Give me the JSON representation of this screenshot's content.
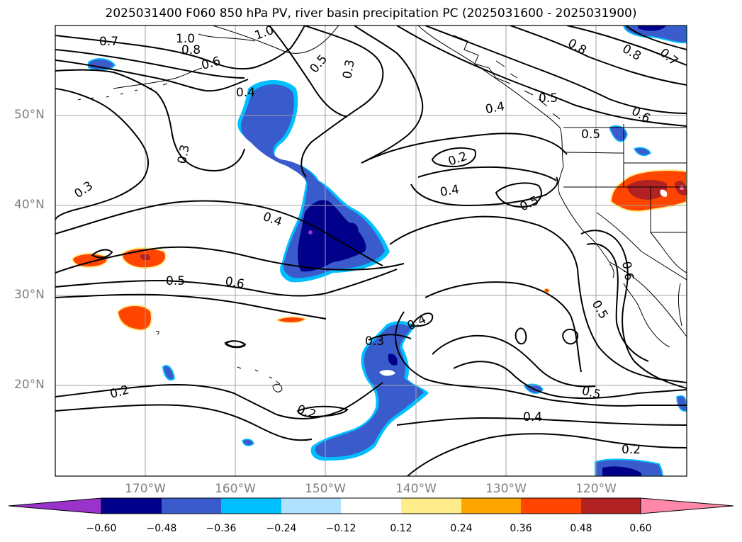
{
  "title": "2025031400 F060 850 hPa PV, river basin precipitation PC (2025031600 - 2025031900)",
  "axes": {
    "lat_labels": [
      "50°N",
      "40°N",
      "30°N",
      "20°N"
    ],
    "lon_labels": [
      "170°W",
      "160°W",
      "150°W",
      "140°W",
      "130°W",
      "120°W"
    ]
  },
  "contour_labels": [
    "0.7",
    "1.0",
    "1.0",
    "0.8",
    "0.6",
    "0.4",
    "0.5",
    "0.3",
    "0.8",
    "0.7",
    "0.8",
    "0.5",
    "0.6",
    "0.4",
    "0.5",
    "0.3",
    "0.3",
    "0.2",
    "0.4",
    "0.5",
    "0.4",
    "0.5",
    "0.6",
    "0.6",
    "0.5",
    "0.4",
    "0.3",
    "0.2",
    "0.2",
    "0.5",
    "0.4",
    "0.2"
  ],
  "colorbar": {
    "ticks": [
      "−0.60",
      "−0.48",
      "−0.36",
      "−0.24",
      "−0.12",
      "0.12",
      "0.24",
      "0.36",
      "0.48",
      "0.60"
    ],
    "colors": [
      "#9933cc",
      "#00008b",
      "#3a5bcc",
      "#00bfff",
      "#b0e2ff",
      "#ffffff",
      "#ffec8b",
      "#ffa500",
      "#ff4500",
      "#b22222",
      "#ff88aa"
    ]
  },
  "colors": {
    "contour": "#000000",
    "coast": "#000000",
    "grid": "#a0a0a0"
  }
}
